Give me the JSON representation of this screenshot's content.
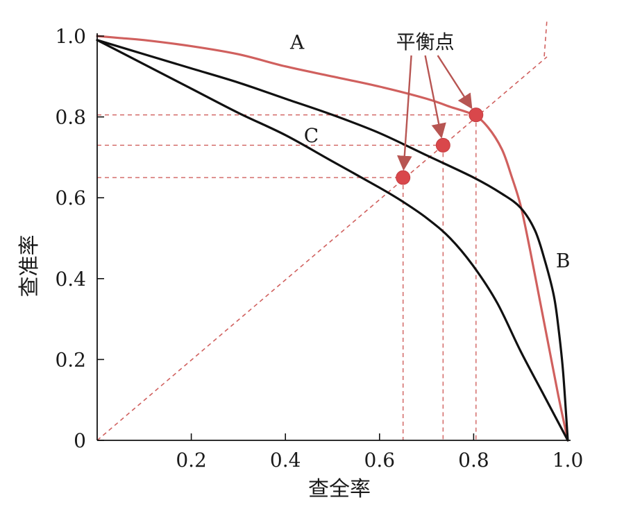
{
  "chart_data": {
    "type": "line",
    "xlabel": "查全率",
    "ylabel": "查准率",
    "xlim": [
      0,
      1.0
    ],
    "ylim": [
      0,
      1.0
    ],
    "x_ticks": [
      0.2,
      0.4,
      0.6,
      0.8,
      1.0
    ],
    "x_tick_labels": [
      "0.2",
      "0.4",
      "0.6",
      "0.8",
      "1.0"
    ],
    "y_ticks": [
      0,
      0.2,
      0.4,
      0.6,
      0.8,
      1.0
    ],
    "y_tick_labels": [
      "0",
      "0.2",
      "0.4",
      "0.6",
      "0.8",
      "1.0"
    ],
    "grid": false,
    "series": [
      {
        "name": "A",
        "color": "#d0605e",
        "points": [
          [
            0,
            1.0
          ],
          [
            0.05,
            0.995
          ],
          [
            0.1,
            0.99
          ],
          [
            0.2,
            0.975
          ],
          [
            0.3,
            0.955
          ],
          [
            0.4,
            0.925
          ],
          [
            0.5,
            0.9
          ],
          [
            0.6,
            0.875
          ],
          [
            0.7,
            0.845
          ],
          [
            0.75,
            0.825
          ],
          [
            0.8,
            0.805
          ],
          [
            0.83,
            0.775
          ],
          [
            0.86,
            0.72
          ],
          [
            0.88,
            0.655
          ],
          [
            0.9,
            0.58
          ],
          [
            0.92,
            0.47
          ],
          [
            0.94,
            0.35
          ],
          [
            0.96,
            0.23
          ],
          [
            0.98,
            0.11
          ],
          [
            1.0,
            0
          ]
        ]
      },
      {
        "name": "B",
        "color": "#111111",
        "points": [
          [
            0,
            0.99
          ],
          [
            0.1,
            0.955
          ],
          [
            0.2,
            0.92
          ],
          [
            0.3,
            0.885
          ],
          [
            0.4,
            0.845
          ],
          [
            0.5,
            0.805
          ],
          [
            0.6,
            0.76
          ],
          [
            0.7,
            0.705
          ],
          [
            0.8,
            0.65
          ],
          [
            0.86,
            0.61
          ],
          [
            0.9,
            0.575
          ],
          [
            0.93,
            0.52
          ],
          [
            0.95,
            0.45
          ],
          [
            0.97,
            0.36
          ],
          [
            0.98,
            0.28
          ],
          [
            0.99,
            0.17
          ],
          [
            1.0,
            0
          ]
        ]
      },
      {
        "name": "C",
        "color": "#111111",
        "points": [
          [
            0,
            0.99
          ],
          [
            0.1,
            0.93
          ],
          [
            0.2,
            0.87
          ],
          [
            0.3,
            0.81
          ],
          [
            0.4,
            0.755
          ],
          [
            0.5,
            0.69
          ],
          [
            0.6,
            0.625
          ],
          [
            0.65,
            0.59
          ],
          [
            0.7,
            0.55
          ],
          [
            0.75,
            0.5
          ],
          [
            0.8,
            0.43
          ],
          [
            0.85,
            0.34
          ],
          [
            0.9,
            0.22
          ],
          [
            0.95,
            0.11
          ],
          [
            1.0,
            0
          ]
        ]
      }
    ],
    "diagonal": {
      "x": [
        0,
        1.0
      ],
      "y": [
        0,
        1.0
      ],
      "color": "#d0605e"
    },
    "break_even_points": [
      {
        "x": 0.65,
        "y": 0.65
      },
      {
        "x": 0.735,
        "y": 0.73
      },
      {
        "x": 0.805,
        "y": 0.805
      }
    ],
    "curve_labels": [
      {
        "text": "A",
        "x": 0.425,
        "y": 0.985
      },
      {
        "text": "B",
        "x": 0.99,
        "y": 0.445
      },
      {
        "text": "C",
        "x": 0.455,
        "y": 0.755
      }
    ],
    "annotation": {
      "text": "平衡点",
      "x": 0.7,
      "y": 1.0
    },
    "colors": {
      "red": "#d0605e",
      "black": "#111111",
      "marker": "#d9474b"
    }
  }
}
